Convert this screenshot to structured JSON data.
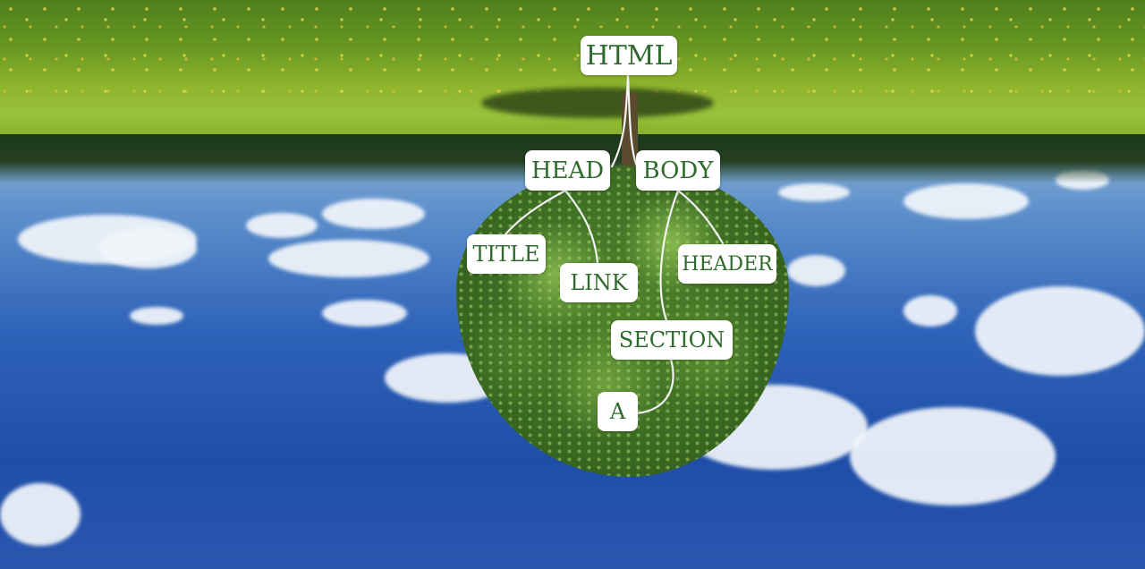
{
  "diagram": {
    "nodes": {
      "html": "HTML",
      "head": "HEAD",
      "body": "BODY",
      "title": "TITLE",
      "link": "LINK",
      "header": "HEADER",
      "section": "SECTION",
      "a": "A"
    },
    "edges": [
      [
        "HTML",
        "HEAD"
      ],
      [
        "HTML",
        "BODY"
      ],
      [
        "HEAD",
        "TITLE"
      ],
      [
        "HEAD",
        "LINK"
      ],
      [
        "BODY",
        "HEADER"
      ],
      [
        "BODY",
        "SECTION"
      ],
      [
        "SECTION",
        "A"
      ]
    ]
  },
  "colors": {
    "node_background": "#ffffff",
    "node_text": "#2f6b2c",
    "edge_stroke": "#f4f4f4"
  }
}
